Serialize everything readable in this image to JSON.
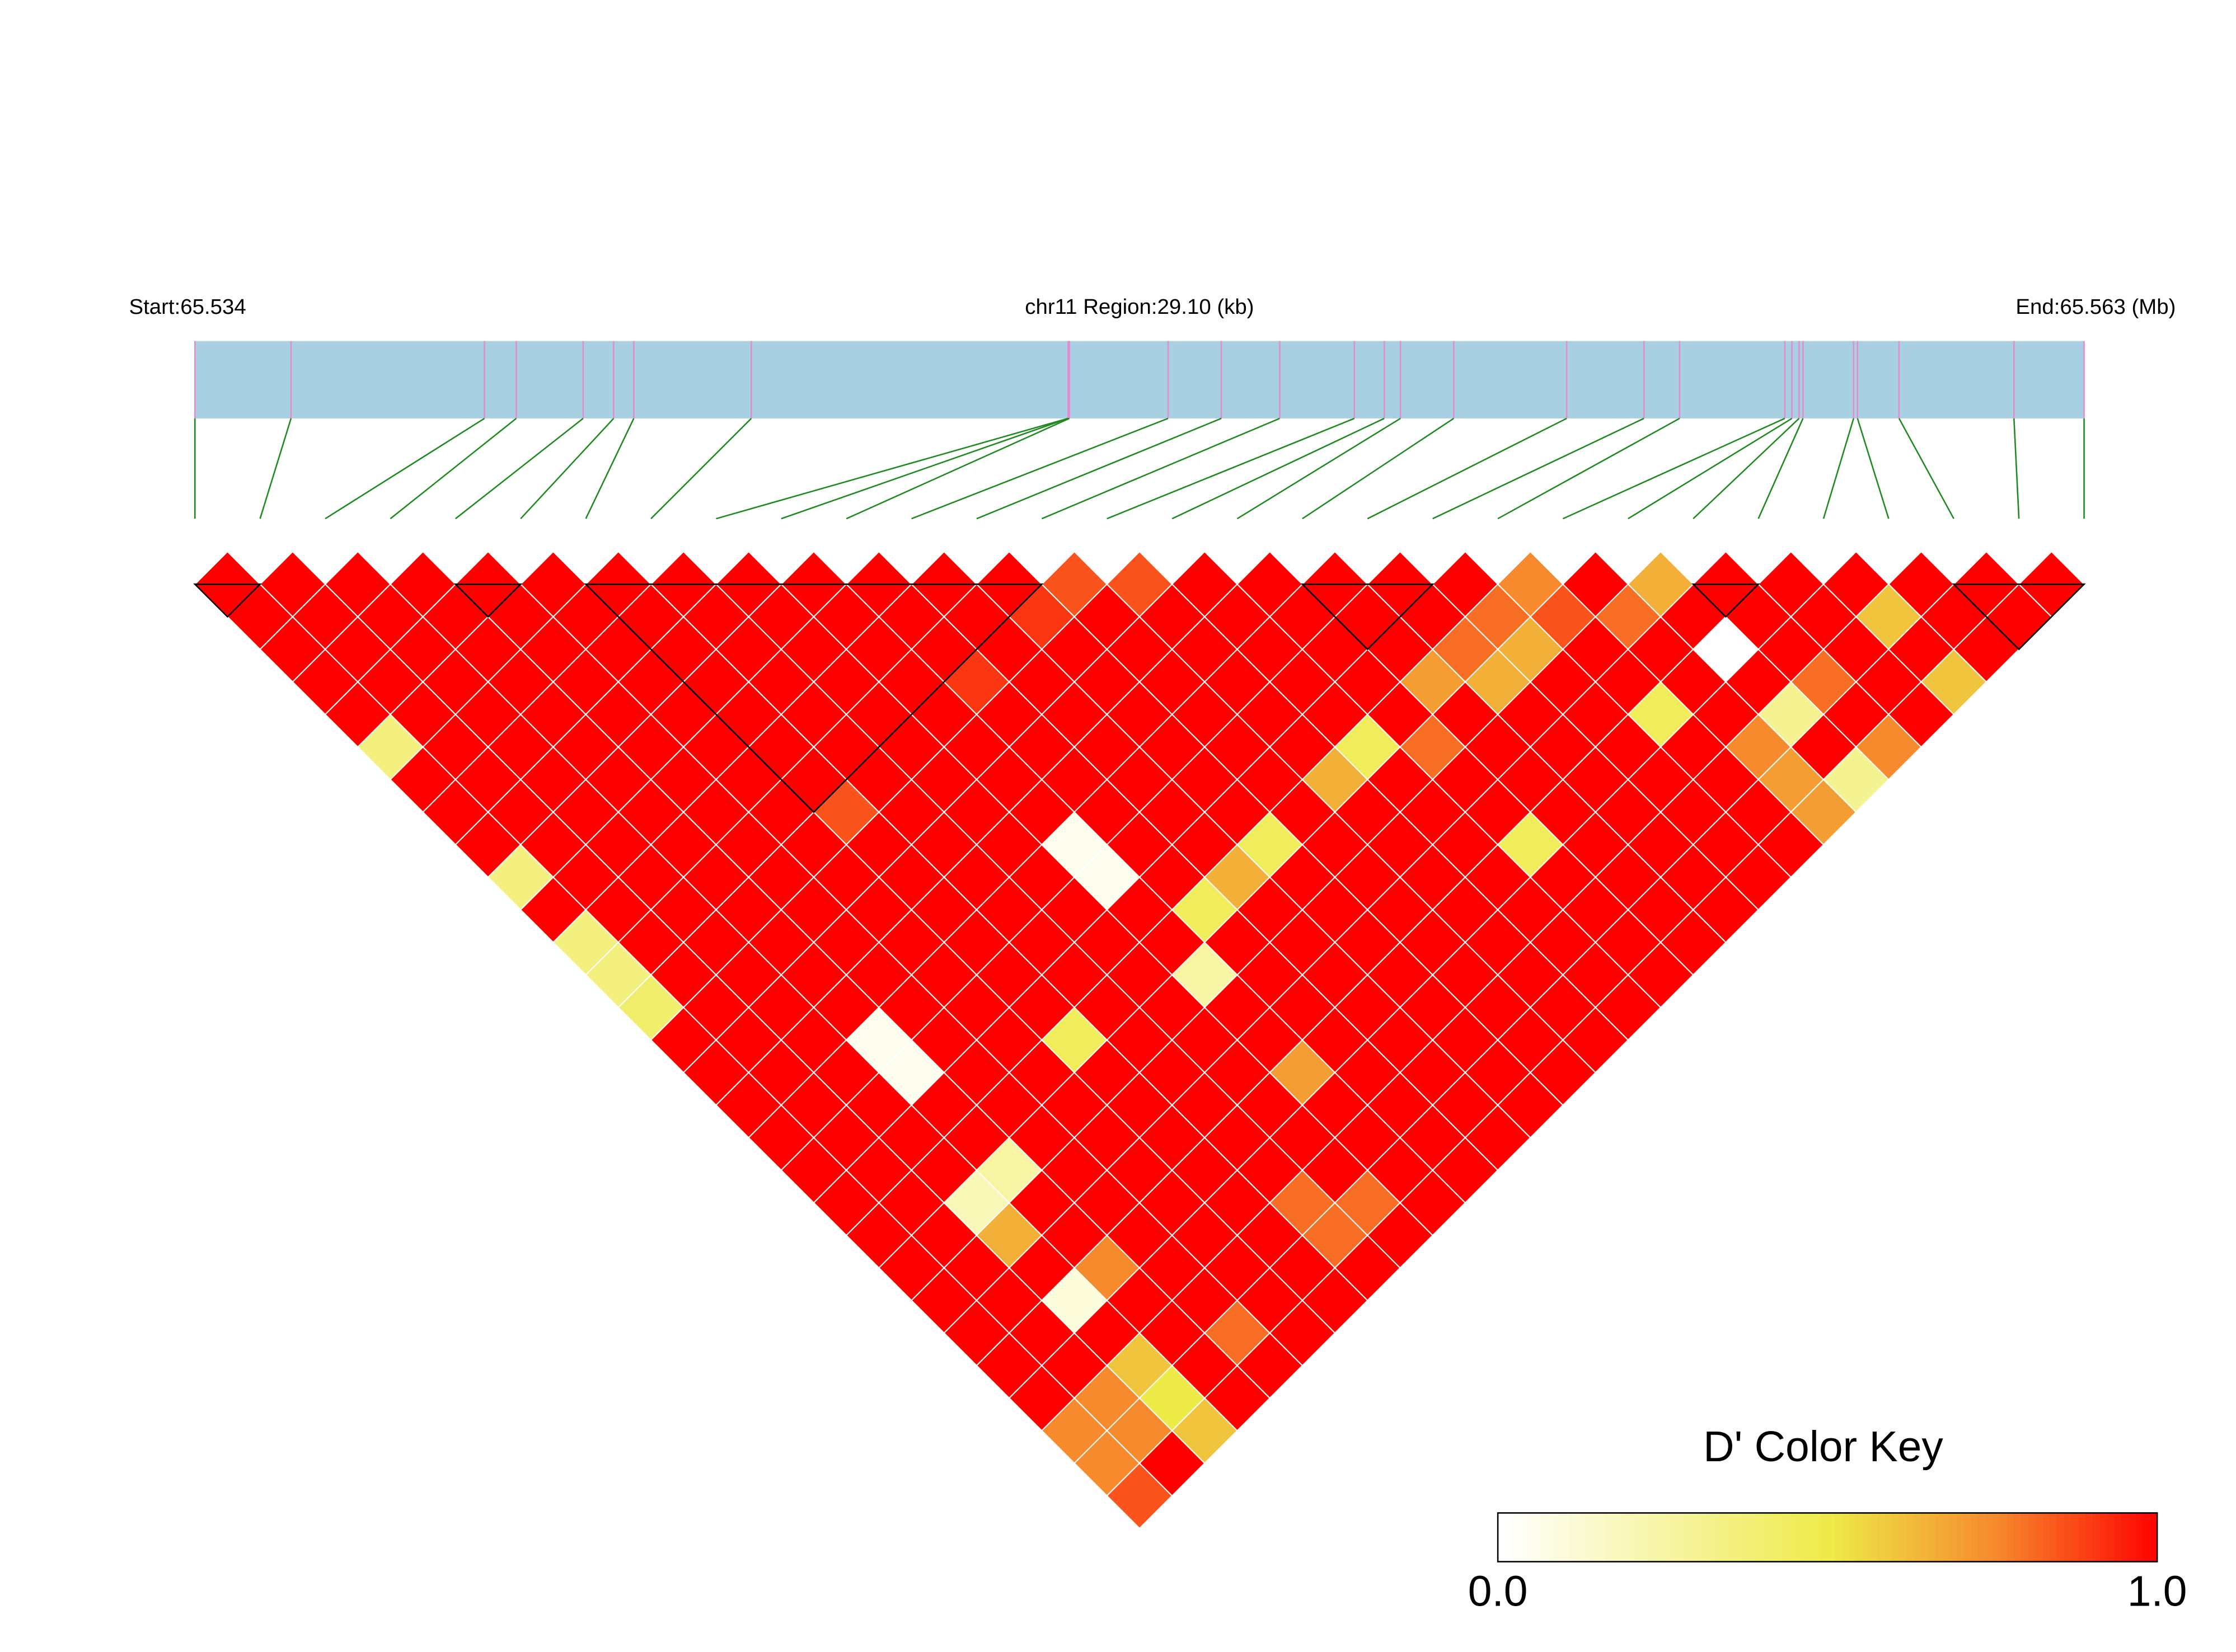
{
  "chart_data": {
    "type": "ld_heatmap",
    "start_label": "Start:65.534",
    "region_label": "chr11 Region:29.10 (kb)",
    "end_label": "End:65.563 (Mb)",
    "xlim": [
      0,
      29.1
    ],
    "x": [
      0,
      1.48,
      4.46,
      4.95,
      5.98,
      6.45,
      6.76,
      8.57,
      13.45,
      13.45,
      13.47,
      14.99,
      15.81,
      16.71,
      17.86,
      18.32,
      18.57,
      19.39,
      21.13,
      22.32,
      22.87,
      24.49,
      24.6,
      24.71,
      24.77,
      25.55,
      25.61,
      26.25,
      28.02,
      29.1
    ],
    "dprime": [
      [
        1
      ],
      [
        1,
        1
      ],
      [
        1,
        1,
        1
      ],
      [
        1,
        1,
        1,
        1
      ],
      [
        1,
        1,
        1,
        1,
        1
      ],
      [
        0.35,
        1,
        1,
        1,
        1,
        1
      ],
      [
        1,
        1,
        1,
        1,
        1,
        1,
        1
      ],
      [
        1,
        1,
        1,
        1,
        1,
        1,
        1,
        1
      ],
      [
        1,
        1,
        1,
        1,
        1,
        1,
        1,
        1,
        1
      ],
      [
        0.35,
        1,
        1,
        1,
        1,
        1,
        1,
        1,
        1,
        1
      ],
      [
        1,
        1,
        1,
        1,
        1,
        1,
        1,
        1,
        1,
        1,
        1
      ],
      [
        0.35,
        1,
        1,
        1,
        1,
        1,
        1,
        1,
        1,
        1,
        1,
        1
      ],
      [
        0.35,
        1,
        1,
        1,
        1,
        1,
        1,
        1,
        1,
        1,
        1,
        1,
        1
      ],
      [
        0.4,
        1,
        1,
        1,
        1,
        1,
        0.85,
        1,
        1,
        1,
        0.9,
        1,
        0.9,
        0.85
      ],
      [
        1,
        1,
        1,
        1,
        1,
        1,
        1,
        1,
        1,
        1,
        1,
        1,
        1,
        1,
        0.85
      ],
      [
        1,
        1,
        1,
        1,
        1,
        1,
        1,
        1,
        1,
        1,
        1,
        1,
        1,
        1,
        1,
        1
      ],
      [
        1,
        1,
        1,
        1,
        1,
        1,
        1,
        1,
        1,
        1,
        1,
        1,
        1,
        1,
        1,
        1,
        1
      ],
      [
        1,
        1,
        1,
        0.05,
        1,
        1,
        1,
        1,
        1,
        0.05,
        1,
        1,
        1,
        1,
        1,
        1,
        1,
        1
      ],
      [
        1,
        1,
        1,
        0.05,
        1,
        1,
        1,
        1,
        1,
        0.05,
        1,
        1,
        1,
        1,
        1,
        1,
        1,
        1,
        1
      ],
      [
        1,
        1,
        1,
        1,
        1,
        1,
        1,
        1,
        1,
        1,
        1,
        1,
        1,
        1,
        1,
        1,
        1,
        1,
        1,
        1
      ],
      [
        1,
        1,
        1,
        1,
        1,
        1,
        0.45,
        1,
        1,
        1,
        0.45,
        0.65,
        0.45,
        1,
        0.65,
        0.45,
        1,
        0.7,
        0.8,
        0.8,
        0.75
      ],
      [
        1,
        1,
        0.2,
        0.25,
        1,
        1,
        1,
        1,
        1,
        0.25,
        1,
        1,
        1,
        1,
        1,
        1,
        0.8,
        1,
        0.65,
        0.65,
        0.85,
        1
      ],
      [
        1,
        1,
        0.65,
        1,
        1,
        1,
        1,
        1,
        1,
        1,
        1,
        1,
        1,
        1,
        1,
        1,
        1,
        1,
        1,
        1,
        1,
        0.8,
        0.65
      ],
      [
        1,
        1,
        1,
        1,
        1,
        1,
        1,
        1,
        1,
        1,
        1,
        1,
        1,
        1,
        1,
        1,
        1,
        1,
        1,
        1,
        1,
        1,
        1,
        1
      ],
      [
        1,
        1,
        0.1,
        0.75,
        1,
        1,
        1,
        1,
        1,
        0.7,
        1,
        1,
        1,
        1,
        1,
        1,
        0.45,
        1,
        1,
        1,
        0.45,
        1,
        0,
        1,
        1
      ],
      [
        1,
        1,
        1,
        1,
        1,
        1,
        1,
        1,
        1,
        1,
        1,
        1,
        1,
        1,
        1,
        1,
        1,
        1,
        1,
        1,
        1,
        1,
        1,
        1,
        1,
        1
      ],
      [
        0.75,
        0.75,
        0.6,
        1,
        1,
        1,
        1,
        0.8,
        1,
        1,
        1,
        1,
        1,
        1,
        1,
        1,
        1,
        1,
        1,
        1,
        1,
        0.75,
        0.3,
        0.8,
        1,
        0.6,
        1
      ],
      [
        0.75,
        0.75,
        0.5,
        1,
        0.8,
        1,
        1,
        0.8,
        0.8,
        1,
        1,
        1,
        1,
        1,
        1,
        1,
        1,
        1,
        1,
        1,
        1,
        0.7,
        1,
        1,
        1,
        1,
        1,
        1
      ],
      [
        0.85,
        1,
        0.6,
        1,
        1,
        1,
        1,
        1,
        1,
        1,
        1,
        1,
        1,
        1,
        1,
        1,
        1,
        1,
        1,
        1,
        1,
        0.7,
        0.3,
        0.75,
        1,
        0.6,
        1,
        1,
        1
      ]
    ],
    "blocks": [
      [
        0,
        1
      ],
      [
        4,
        5
      ],
      [
        6,
        13
      ],
      [
        17,
        19
      ],
      [
        23,
        24
      ],
      [
        27,
        29
      ]
    ],
    "key_title": "D' Color Key",
    "key_lim": [
      0,
      1
    ],
    "key_ticks": [
      {
        "value": 0,
        "label": "0.0"
      },
      {
        "value": 1,
        "label": "1.0"
      }
    ],
    "color_stops": [
      {
        "value": 0,
        "color": "#ffffff"
      },
      {
        "value": 0.5,
        "color": "#eeea48"
      },
      {
        "value": 0.75,
        "color": "#f68a2d"
      },
      {
        "value": 1,
        "color": "#ff0000"
      }
    ]
  }
}
